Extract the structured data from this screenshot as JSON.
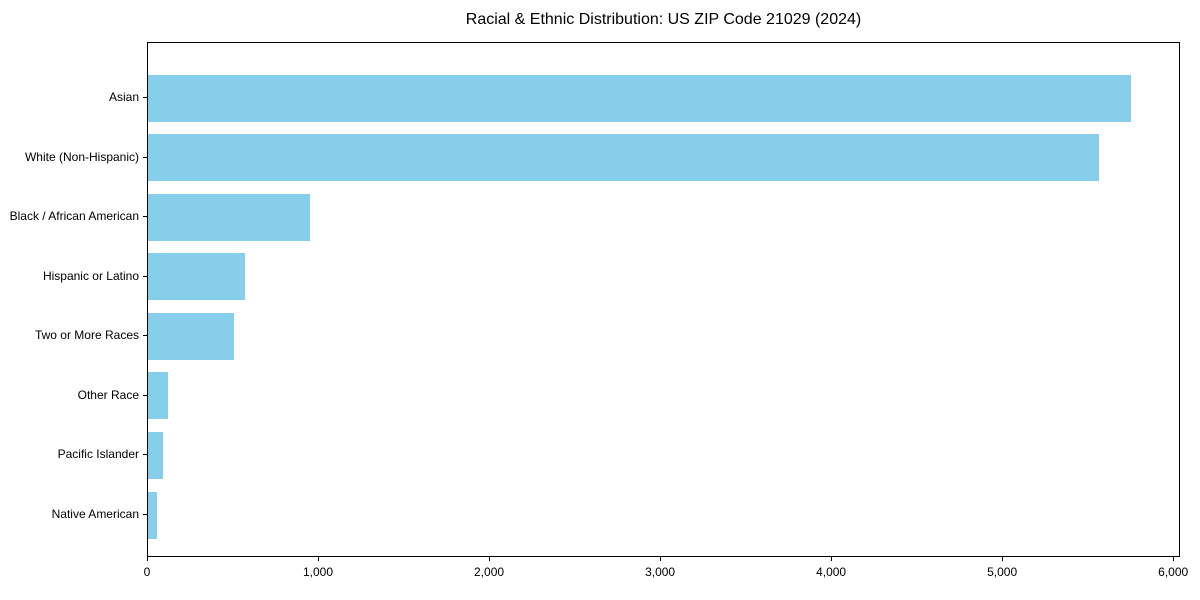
{
  "page": {
    "background_color": "#ffffff"
  },
  "chart_data": {
    "type": "bar",
    "orientation": "horizontal",
    "title": "Racial & Ethnic Distribution: US ZIP Code 21029 (2024)",
    "categories": [
      "Asian",
      "White (Non-Hispanic)",
      "Black / African American",
      "Hispanic or Latino",
      "Two or More Races",
      "Other Race",
      "Pacific Islander",
      "Native American"
    ],
    "values": [
      5760,
      5570,
      950,
      570,
      505,
      120,
      85,
      50
    ],
    "xlabel": "",
    "ylabel": "",
    "xlim": [
      0,
      6040
    ],
    "xticks": [
      0,
      1000,
      2000,
      3000,
      4000,
      5000,
      6000
    ],
    "xtick_labels": [
      "0",
      "1,000",
      "2,000",
      "3,000",
      "4,000",
      "5,000",
      "6,000"
    ],
    "bar_color": "#87CEEB",
    "axis_color": "#000000",
    "text_color": "#000000",
    "grid": false,
    "legend": "none"
  }
}
